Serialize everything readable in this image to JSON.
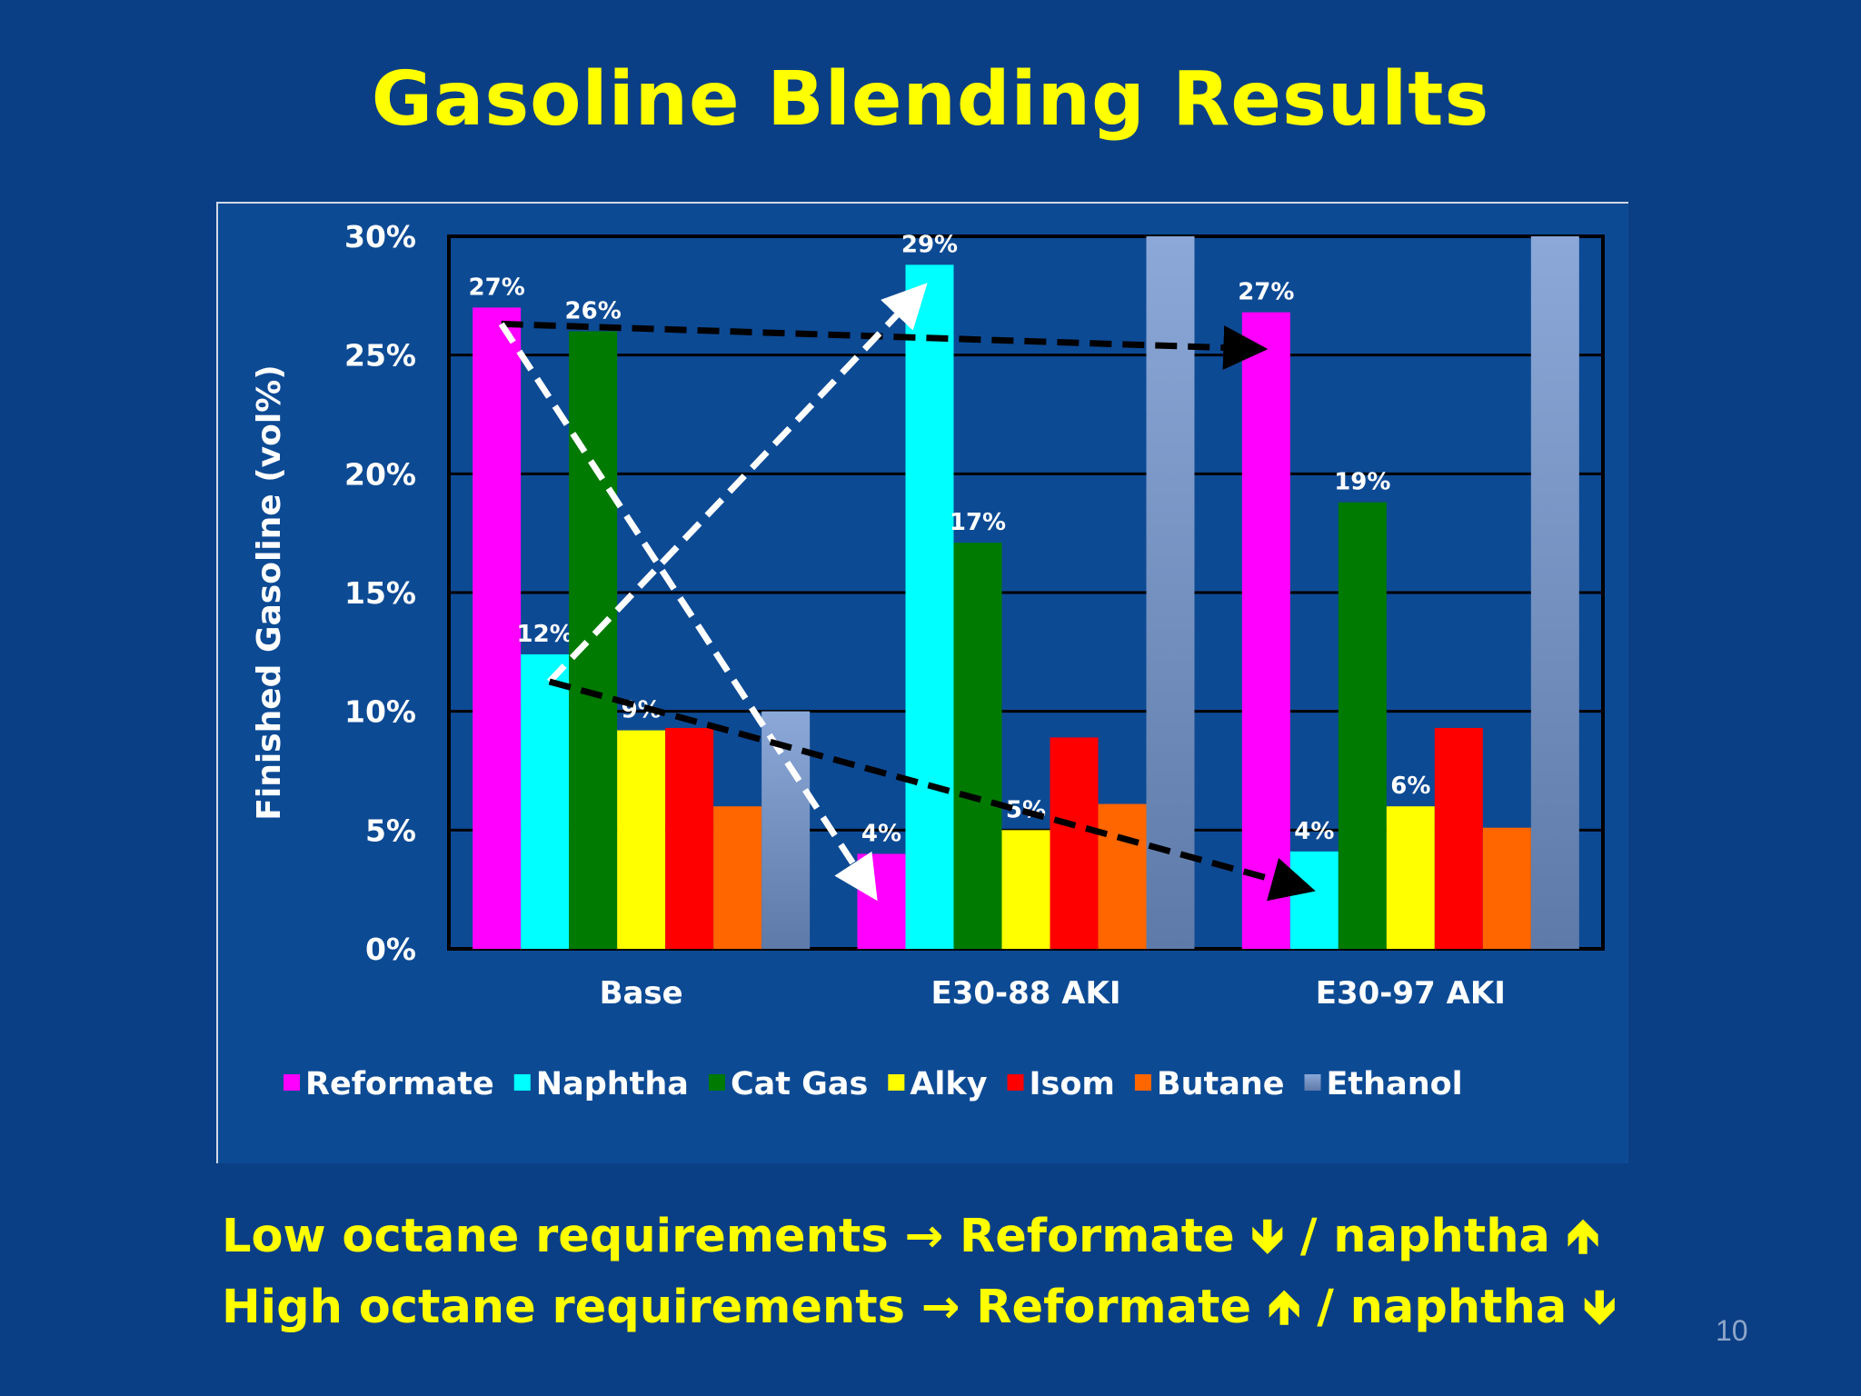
{
  "slide": {
    "title": "Gasoline Blending Results",
    "page_number": "10",
    "bullets": [
      {
        "lead": "Low octane requirements",
        "reformate": "Reformate",
        "reformate_dir": "down",
        "sep": "/",
        "naphtha": "naphtha",
        "naphtha_dir": "up"
      },
      {
        "lead": "High octane requirements",
        "reformate": "Reformate",
        "reformate_dir": "up",
        "sep": "/",
        "naphtha": "naphtha",
        "naphtha_dir": "down"
      }
    ]
  },
  "colors": {
    "background": "#0b3f85",
    "panel": "#0d4a94",
    "title": "#ffff00",
    "Reformate": "#ff00ff",
    "Naphtha": "#00ffff",
    "Cat Gas": "#007a00",
    "Alky": "#ffff00",
    "Isom": "#ff0000",
    "Butane": "#ff6600",
    "Ethanol": "#8ba8d8"
  },
  "chart_data": {
    "type": "bar",
    "title": "",
    "xlabel": "",
    "ylabel": "Finished Gasoline (vol%)",
    "ylim": [
      0,
      30
    ],
    "yticks": [
      "0%",
      "5%",
      "10%",
      "15%",
      "20%",
      "25%",
      "30%"
    ],
    "grid": true,
    "legend_position": "bottom",
    "categories": [
      "Base",
      "E30-88 AKI",
      "E30-97 AKI"
    ],
    "series": [
      {
        "name": "Reformate",
        "values": [
          27,
          4,
          26.8
        ],
        "labels": [
          "27%",
          "4%",
          "27%"
        ]
      },
      {
        "name": "Naphtha",
        "values": [
          12.4,
          28.8,
          4.1
        ],
        "labels": [
          "12%",
          "29%",
          "4%"
        ]
      },
      {
        "name": "Cat Gas",
        "values": [
          26,
          17.1,
          18.8
        ],
        "labels": [
          "26%",
          "17%",
          "19%"
        ]
      },
      {
        "name": "Alky",
        "values": [
          9.2,
          5,
          6
        ],
        "labels": [
          "9%",
          "5%",
          "6%"
        ]
      },
      {
        "name": "Isom",
        "values": [
          9.3,
          8.9,
          9.3
        ],
        "labels": [
          "",
          "",
          ""
        ]
      },
      {
        "name": "Butane",
        "values": [
          6,
          6.1,
          5.1
        ],
        "labels": [
          "",
          "",
          ""
        ]
      },
      {
        "name": "Ethanol",
        "values": [
          10,
          30,
          30
        ],
        "labels": [
          "",
          "",
          ""
        ]
      }
    ],
    "annotations": [
      {
        "type": "dashed-arrow",
        "color": "black",
        "from": {
          "category": "Base",
          "series": "Reformate"
        },
        "to": {
          "category": "E30-97 AKI",
          "series": "Reformate"
        }
      },
      {
        "type": "dashed-arrow",
        "color": "white",
        "from": {
          "category": "Base",
          "series": "Reformate"
        },
        "to": {
          "category": "E30-88 AKI",
          "series": "Reformate"
        }
      },
      {
        "type": "dashed-arrow",
        "color": "white",
        "from": {
          "category": "Base",
          "series": "Naphtha"
        },
        "to": {
          "category": "E30-88 AKI",
          "series": "Naphtha"
        }
      },
      {
        "type": "dashed-arrow",
        "color": "black",
        "from": {
          "category": "Base",
          "series": "Naphtha"
        },
        "to": {
          "category": "E30-97 AKI",
          "series": "Naphtha"
        }
      }
    ]
  }
}
